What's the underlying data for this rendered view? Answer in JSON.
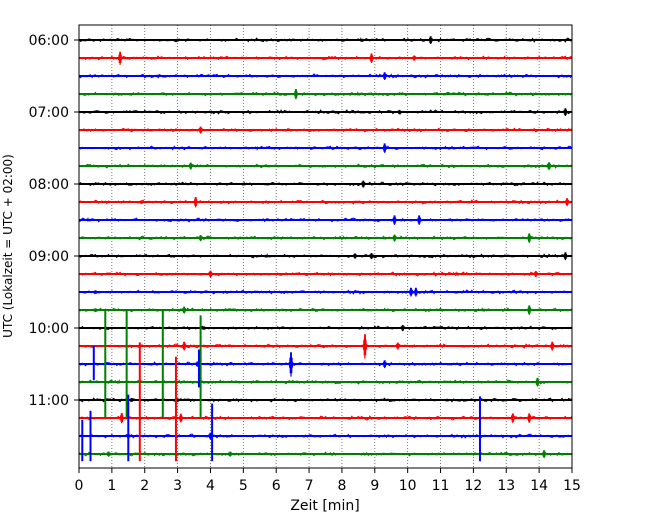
{
  "chart_data": {
    "type": "line",
    "xlabel": "Zeit  [min]",
    "ylabel": "UTC (Lokalzeit = UTC + 02:00)",
    "xlim": [
      0,
      15
    ],
    "x_ticks": [
      0,
      1,
      2,
      3,
      4,
      5,
      6,
      7,
      8,
      9,
      10,
      11,
      12,
      13,
      14,
      15
    ],
    "x_tick_labels": [
      "0",
      "1",
      "2",
      "3",
      "4",
      "5",
      "6",
      "7",
      "8",
      "9",
      "10",
      "11",
      "12",
      "13",
      "14",
      "15"
    ],
    "y_tick_labels": [
      "06:00",
      "07:00",
      "08:00",
      "09:00",
      "10:00",
      "11:00"
    ],
    "y_tick_rows": [
      0,
      4,
      8,
      12,
      16,
      20
    ],
    "grid_vertical": true,
    "trace_colors": [
      "#000000",
      "#ff0000",
      "#0000ff",
      "#008000"
    ],
    "rows": [
      {
        "events": [
          {
            "t": 10.7,
            "a": 0.45
          },
          {
            "t": 3.0,
            "a": 0.15
          },
          {
            "t": 8.6,
            "a": 0.15
          }
        ]
      },
      {
        "events": [
          {
            "t": 1.25,
            "a": 0.75
          },
          {
            "t": 8.9,
            "a": 0.55
          },
          {
            "t": 10.2,
            "a": 0.3
          }
        ]
      },
      {
        "events": [
          {
            "t": 9.3,
            "a": 0.45
          },
          {
            "t": 2.4,
            "a": 0.1
          }
        ]
      },
      {
        "events": [
          {
            "t": 6.6,
            "a": 0.6
          },
          {
            "t": 8.5,
            "a": 0.15
          }
        ]
      },
      {
        "events": [
          {
            "t": 14.8,
            "a": 0.45
          },
          {
            "t": 9.75,
            "a": 0.25
          },
          {
            "t": 4.0,
            "a": 0.1
          }
        ]
      },
      {
        "events": [
          {
            "t": 3.7,
            "a": 0.4
          },
          {
            "t": 1.6,
            "a": 0.15
          }
        ]
      },
      {
        "events": [
          {
            "t": 9.3,
            "a": 0.55
          },
          {
            "t": 5.4,
            "a": 0.1
          }
        ]
      },
      {
        "events": [
          {
            "t": 3.4,
            "a": 0.4
          },
          {
            "t": 14.3,
            "a": 0.45
          }
        ]
      },
      {
        "events": [
          {
            "t": 8.65,
            "a": 0.4
          },
          {
            "t": 5.0,
            "a": 0.15
          }
        ]
      },
      {
        "events": [
          {
            "t": 3.55,
            "a": 0.6
          },
          {
            "t": 14.85,
            "a": 0.45
          },
          {
            "t": 1.9,
            "a": 0.2
          }
        ]
      },
      {
        "events": [
          {
            "t": 9.6,
            "a": 0.55
          },
          {
            "t": 10.35,
            "a": 0.55
          },
          {
            "t": 0.3,
            "a": 0.15
          }
        ]
      },
      {
        "events": [
          {
            "t": 3.7,
            "a": 0.35
          },
          {
            "t": 9.6,
            "a": 0.4
          },
          {
            "t": 13.7,
            "a": 0.55
          },
          {
            "t": 9.3,
            "a": 0.15
          }
        ]
      },
      {
        "events": [
          {
            "t": 14.8,
            "a": 0.45
          },
          {
            "t": 8.4,
            "a": 0.3
          },
          {
            "t": 8.9,
            "a": 0.35
          },
          {
            "t": 5.7,
            "a": 0.15
          }
        ]
      },
      {
        "events": [
          {
            "t": 4.0,
            "a": 0.4
          },
          {
            "t": 13.9,
            "a": 0.35
          },
          {
            "t": 11.5,
            "a": 0.15
          }
        ]
      },
      {
        "events": [
          {
            "t": 10.1,
            "a": 0.5
          },
          {
            "t": 10.25,
            "a": 0.5
          },
          {
            "t": 0.5,
            "a": 0.2
          }
        ]
      },
      {
        "events": [
          {
            "t": 3.2,
            "a": 0.4
          },
          {
            "t": 13.7,
            "a": 0.55
          },
          {
            "t": 0.5,
            "a": 0.2
          },
          {
            "t": 12.3,
            "a": 0.15
          }
        ]
      },
      {
        "events": [
          {
            "t": 9.85,
            "a": 0.35
          },
          {
            "t": 3.8,
            "a": 0.2
          }
        ]
      },
      {
        "events": [
          {
            "t": 8.7,
            "a": 1.4
          },
          {
            "t": 3.2,
            "a": 0.5
          },
          {
            "t": 9.7,
            "a": 0.4
          },
          {
            "t": 14.4,
            "a": 0.5
          }
        ]
      },
      {
        "events": [
          {
            "t": 6.45,
            "a": 1.4
          },
          {
            "t": 9.3,
            "a": 0.45
          },
          {
            "t": 3.6,
            "a": 0.3
          }
        ]
      },
      {
        "events": [
          {
            "t": 13.95,
            "a": 0.5
          },
          {
            "t": 1.2,
            "a": 0.15
          }
        ]
      },
      {
        "events": [
          {
            "t": 1.6,
            "a": 0.2
          },
          {
            "t": 3.0,
            "a": 0.2
          },
          {
            "t": 11.2,
            "a": 0.15
          }
        ]
      },
      {
        "events": [
          {
            "t": 1.3,
            "a": 0.6
          },
          {
            "t": 3.1,
            "a": 0.5
          },
          {
            "t": 13.2,
            "a": 0.55
          },
          {
            "t": 13.7,
            "a": 0.55
          }
        ]
      },
      {
        "events": [
          {
            "t": 4.0,
            "a": 0.4
          },
          {
            "t": 1.5,
            "a": 0.3
          }
        ]
      },
      {
        "events": [
          {
            "t": 14.15,
            "a": 0.45
          },
          {
            "t": 4.6,
            "a": 0.3
          },
          {
            "t": 0.9,
            "a": 0.3
          }
        ]
      }
    ],
    "spikes": [
      {
        "t": 0.1,
        "color": "#0000ff",
        "from": 21.1,
        "to": 23.4
      },
      {
        "t": 0.35,
        "color": "#0000ff",
        "from": 20.6,
        "to": 23.4
      },
      {
        "t": 0.45,
        "color": "#0000ff",
        "from": 17.0,
        "to": 18.9
      },
      {
        "t": 0.8,
        "color": "#008000",
        "from": 15.0,
        "to": 21.0
      },
      {
        "t": 1.45,
        "color": "#008000",
        "from": 15.0,
        "to": 21.0
      },
      {
        "t": 1.5,
        "color": "#0000ff",
        "from": 19.7,
        "to": 23.4
      },
      {
        "t": 1.85,
        "color": "#ff0000",
        "from": 16.8,
        "to": 23.4
      },
      {
        "t": 2.55,
        "color": "#008000",
        "from": 15.0,
        "to": 21.0
      },
      {
        "t": 2.95,
        "color": "#ff0000",
        "from": 17.6,
        "to": 23.4
      },
      {
        "t": 3.7,
        "color": "#008000",
        "from": 15.3,
        "to": 21.0
      },
      {
        "t": 3.65,
        "color": "#0000ff",
        "from": 17.2,
        "to": 19.3
      },
      {
        "t": 4.05,
        "color": "#0000ff",
        "from": 20.2,
        "to": 23.4
      },
      {
        "t": 12.2,
        "color": "#0000ff",
        "from": 19.8,
        "to": 23.4
      }
    ]
  }
}
